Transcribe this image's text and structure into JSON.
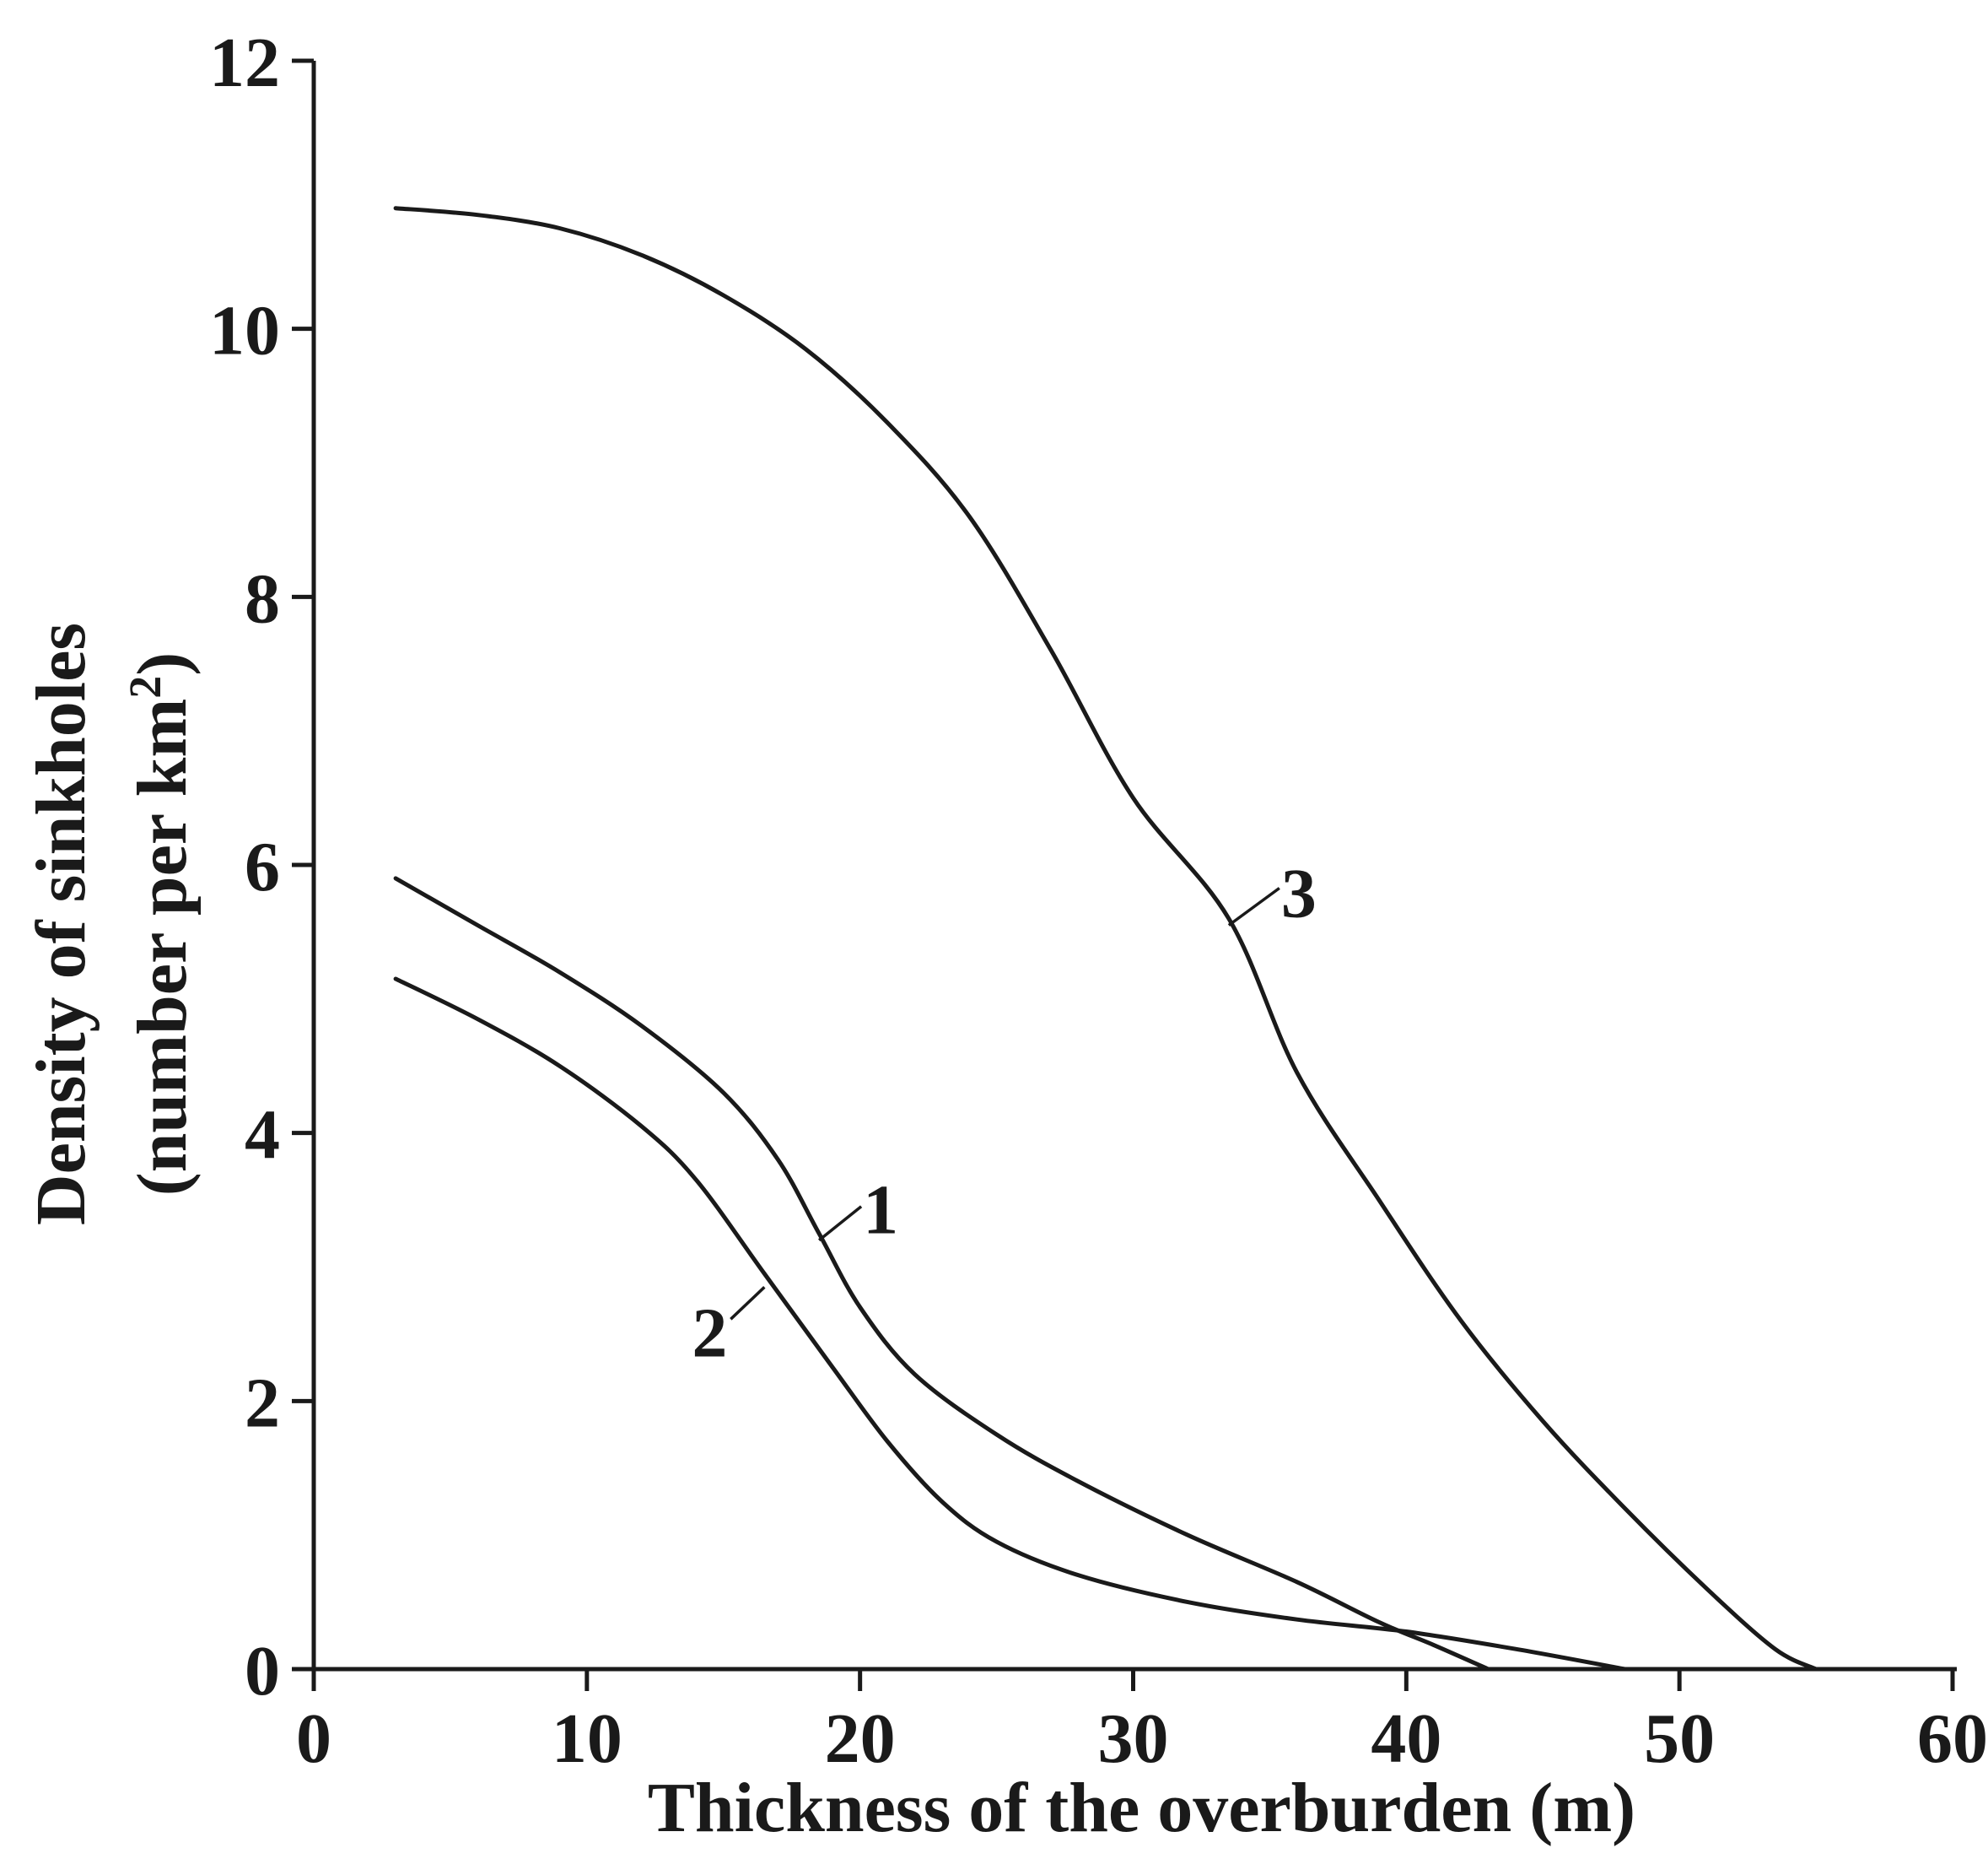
{
  "chart_data": {
    "type": "line",
    "title": "",
    "xlabel": "Thickness of the overburden (m)",
    "ylabel_line1": "Density of sinkholes",
    "ylabel_line2_prefix": "(number per km",
    "ylabel_line2_sup": "2",
    "ylabel_line2_suffix": ")",
    "xlim": [
      0,
      60
    ],
    "ylim": [
      0,
      12
    ],
    "x_ticks": [
      0,
      10,
      20,
      30,
      40,
      50,
      60
    ],
    "x_tick_labels": [
      "0",
      "10",
      "20",
      "30",
      "40",
      "50",
      "60"
    ],
    "y_ticks": [
      0,
      2,
      4,
      6,
      8,
      10,
      12
    ],
    "y_tick_labels": [
      "0",
      "2",
      "4",
      "6",
      "8",
      "10",
      "12"
    ],
    "grid": false,
    "colors": {
      "line": "#1a1a1a",
      "text": "#1a1a1a",
      "background": "#ffffff"
    },
    "series": [
      {
        "name": "1",
        "label_anchor": {
          "x": 18.5,
          "y": 3.2
        },
        "points": [
          [
            3,
            5.9
          ],
          [
            6,
            5.55
          ],
          [
            9,
            5.2
          ],
          [
            12,
            4.8
          ],
          [
            15,
            4.3
          ],
          [
            17,
            3.8
          ],
          [
            18.5,
            3.25
          ],
          [
            20,
            2.7
          ],
          [
            22,
            2.2
          ],
          [
            25,
            1.75
          ],
          [
            28,
            1.4
          ],
          [
            32,
            1.0
          ],
          [
            36,
            0.65
          ],
          [
            39,
            0.35
          ],
          [
            41,
            0.18
          ],
          [
            43,
            0.0
          ]
        ]
      },
      {
        "name": "2",
        "label_anchor": {
          "x": 16.5,
          "y": 2.85
        },
        "points": [
          [
            3,
            5.15
          ],
          [
            6,
            4.85
          ],
          [
            9,
            4.5
          ],
          [
            12,
            4.05
          ],
          [
            14,
            3.65
          ],
          [
            16.5,
            2.95
          ],
          [
            19,
            2.25
          ],
          [
            21,
            1.7
          ],
          [
            23,
            1.25
          ],
          [
            25,
            0.95
          ],
          [
            28,
            0.7
          ],
          [
            32,
            0.5
          ],
          [
            36,
            0.37
          ],
          [
            40,
            0.28
          ],
          [
            44,
            0.15
          ],
          [
            48,
            0.0
          ]
        ]
      },
      {
        "name": "3",
        "label_anchor": {
          "x": 33.5,
          "y": 5.55
        },
        "points": [
          [
            3,
            10.9
          ],
          [
            6,
            10.85
          ],
          [
            9,
            10.75
          ],
          [
            12,
            10.55
          ],
          [
            15,
            10.25
          ],
          [
            18,
            9.85
          ],
          [
            21,
            9.3
          ],
          [
            24,
            8.6
          ],
          [
            27,
            7.6
          ],
          [
            30,
            6.5
          ],
          [
            33.5,
            5.6
          ],
          [
            36,
            4.45
          ],
          [
            39,
            3.5
          ],
          [
            42,
            2.6
          ],
          [
            45,
            1.85
          ],
          [
            48,
            1.2
          ],
          [
            51,
            0.6
          ],
          [
            53.5,
            0.15
          ],
          [
            55,
            0.0
          ]
        ]
      }
    ]
  }
}
